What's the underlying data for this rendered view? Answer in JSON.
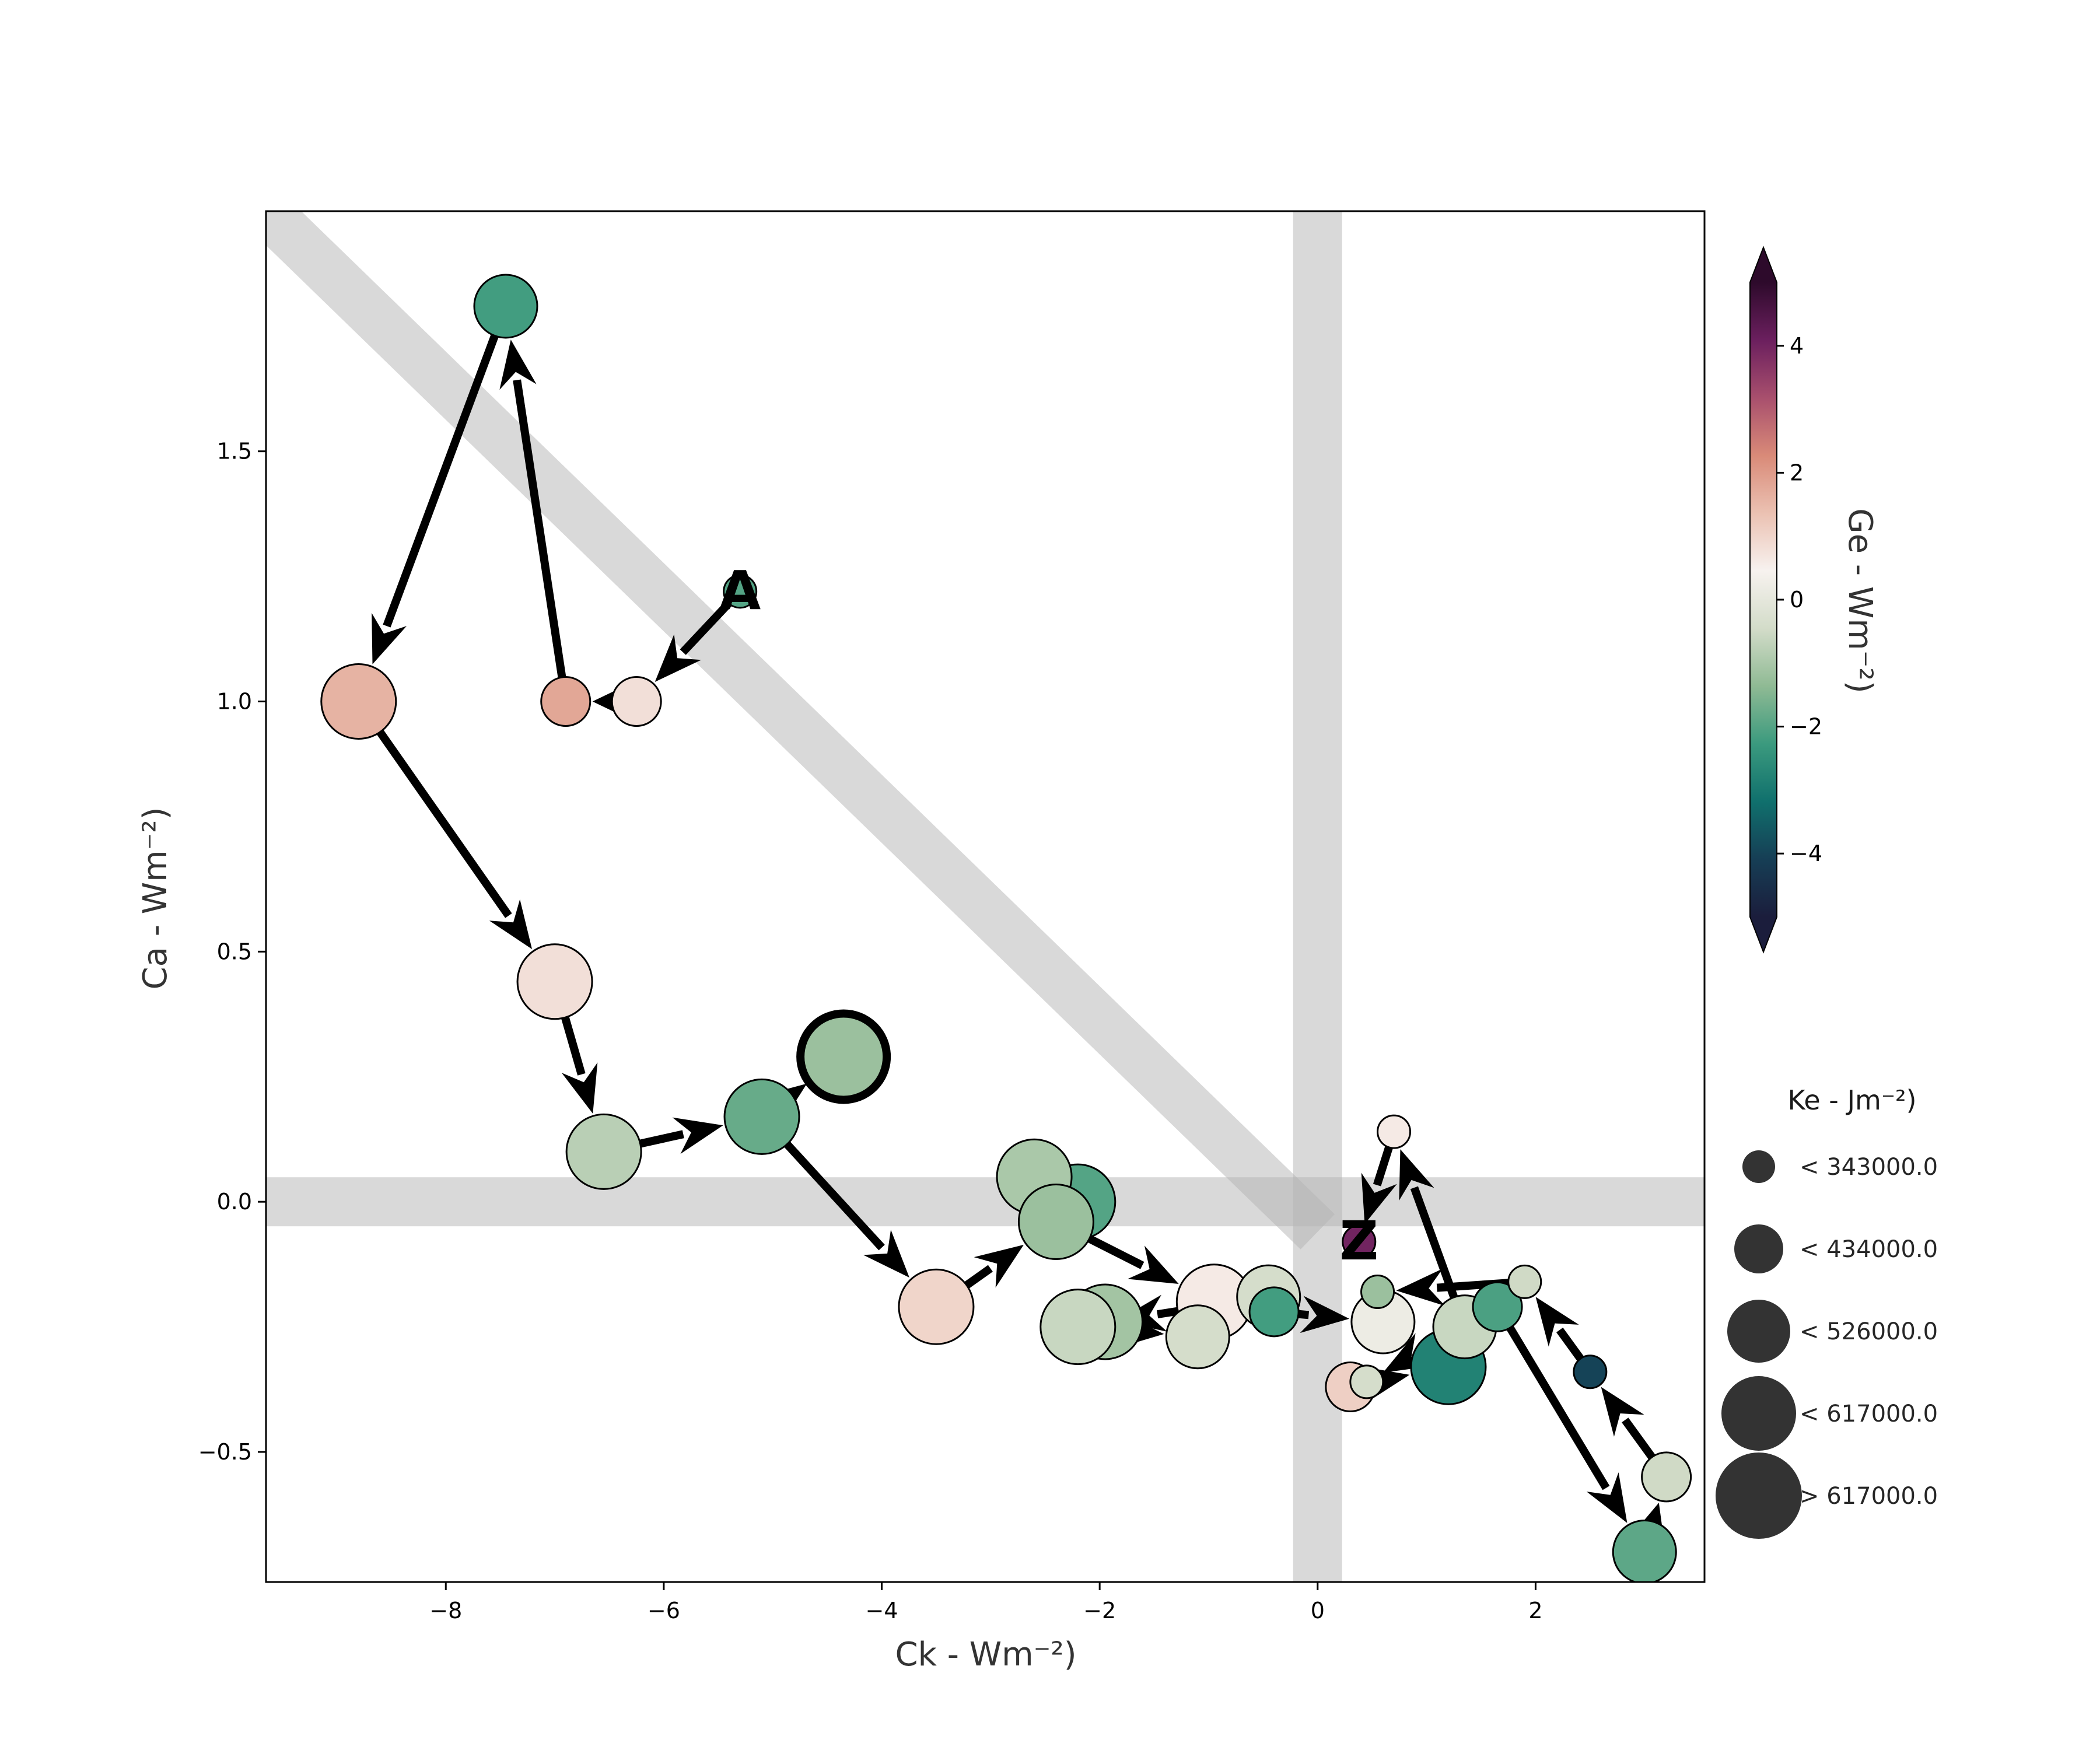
{
  "chart_data": {
    "type": "scatter",
    "xlabel": "Ck - Wm⁻²)",
    "ylabel": "Ca - Wm⁻²)",
    "xlim": [
      -9.65,
      3.55
    ],
    "ylim": [
      -0.76,
      1.98
    ],
    "xticks": [
      -8,
      -6,
      -4,
      -2,
      0,
      2
    ],
    "xtick_labels": [
      "−8",
      "−6",
      "−4",
      "−2",
      "0",
      "2"
    ],
    "yticks": [
      -0.5,
      0.0,
      0.5,
      1.0,
      1.5
    ],
    "ytick_labels": [
      "−0.5",
      "0.0",
      "0.5",
      "1.0",
      "1.5"
    ],
    "grid": false,
    "reference_bands": [
      {
        "kind": "vertical",
        "x": 0
      },
      {
        "kind": "horizontal",
        "y": 0
      },
      {
        "kind": "diagonal",
        "from": [
          -9.65,
          1.98
        ],
        "to": [
          0,
          -0.06
        ]
      }
    ],
    "colorbar": {
      "label": "Ge - Wm⁻²)",
      "range": [
        -5,
        5
      ],
      "ticks": [
        4,
        2,
        0,
        -2,
        -4
      ],
      "tick_labels": [
        "4",
        "2",
        "0",
        "−2",
        "−4"
      ],
      "extend": "both",
      "colors": [
        "#1b1d3c",
        "#163e55",
        "#10706d",
        "#3b9a7e",
        "#8fba94",
        "#d3dcc9",
        "#f7f2ef",
        "#ebc1b2",
        "#d98a78",
        "#a84f6d",
        "#6b1f5e",
        "#2d0a2b"
      ]
    },
    "size_legend": {
      "title": "Ke - Jm⁻²)",
      "entries": [
        "< 343000.0",
        "< 434000.0",
        "< 526000.0",
        "< 617000.0",
        "> 617000.0"
      ]
    },
    "markers": {
      "start": "A",
      "end": "Z"
    },
    "points": [
      {
        "x": -5.3,
        "y": 1.22,
        "ge": -2.0,
        "ke_class": 0
      },
      {
        "x": -6.25,
        "y": 1.0,
        "ge": 0.8,
        "ke_class": 1
      },
      {
        "x": -6.9,
        "y": 1.0,
        "ge": 1.8,
        "ke_class": 1
      },
      {
        "x": -7.45,
        "y": 1.79,
        "ge": -2.2,
        "ke_class": 2
      },
      {
        "x": -8.8,
        "y": 1.0,
        "ge": 1.6,
        "ke_class": 3
      },
      {
        "x": -7.0,
        "y": 0.44,
        "ge": 0.8,
        "ke_class": 3
      },
      {
        "x": -6.55,
        "y": 0.1,
        "ge": -0.8,
        "ke_class": 3
      },
      {
        "x": -5.1,
        "y": 0.17,
        "ge": -1.8,
        "ke_class": 3
      },
      {
        "x": -4.35,
        "y": 0.29,
        "ge": -1.2,
        "ke_class": 4,
        "highlight": true
      },
      {
        "x": -3.5,
        "y": -0.21,
        "ge": 1.0,
        "ke_class": 3
      },
      {
        "x": -2.2,
        "y": 0.0,
        "ge": -2.0,
        "ke_class": 3
      },
      {
        "x": -2.6,
        "y": 0.05,
        "ge": -1.0,
        "ke_class": 3
      },
      {
        "x": -2.4,
        "y": -0.04,
        "ge": -1.2,
        "ke_class": 3
      },
      {
        "x": -0.95,
        "y": -0.2,
        "ge": 0.6,
        "ke_class": 3
      },
      {
        "x": -0.45,
        "y": -0.19,
        "ge": -0.4,
        "ke_class": 2
      },
      {
        "x": -1.95,
        "y": -0.24,
        "ge": -1.1,
        "ke_class": 3
      },
      {
        "x": -2.2,
        "y": -0.25,
        "ge": -0.6,
        "ke_class": 3
      },
      {
        "x": -1.1,
        "y": -0.27,
        "ge": -0.4,
        "ke_class": 2
      },
      {
        "x": -0.4,
        "y": -0.22,
        "ge": -2.2,
        "ke_class": 1
      },
      {
        "x": 0.6,
        "y": -0.24,
        "ge": 0.2,
        "ke_class": 2
      },
      {
        "x": 1.35,
        "y": -0.25,
        "ge": -0.6,
        "ke_class": 2
      },
      {
        "x": 0.45,
        "y": -0.36,
        "ge": -0.4,
        "ke_class": 0
      },
      {
        "x": 0.3,
        "y": -0.37,
        "ge": 1.1,
        "ke_class": 1
      },
      {
        "x": 1.2,
        "y": -0.33,
        "ge": -2.8,
        "ke_class": 3
      },
      {
        "x": 1.65,
        "y": -0.21,
        "ge": -2.1,
        "ke_class": 1
      },
      {
        "x": 0.55,
        "y": -0.18,
        "ge": -1.2,
        "ke_class": 0
      },
      {
        "x": 1.9,
        "y": -0.16,
        "ge": -0.5,
        "ke_class": 0
      },
      {
        "x": 2.5,
        "y": -0.34,
        "ge": -4.0,
        "ke_class": 0
      },
      {
        "x": 3.2,
        "y": -0.55,
        "ge": -0.5,
        "ke_class": 1
      },
      {
        "x": 3.0,
        "y": -0.7,
        "ge": -1.9,
        "ke_class": 2
      },
      {
        "x": 0.7,
        "y": 0.14,
        "ge": 0.6,
        "ke_class": 0
      },
      {
        "x": 0.38,
        "y": -0.08,
        "ge": 4.0,
        "ke_class": 0
      }
    ],
    "arrows": [
      {
        "from": 0,
        "to": 1
      },
      {
        "from": 1,
        "to": 2
      },
      {
        "from": 2,
        "to": 3
      },
      {
        "from": 3,
        "to": 4
      },
      {
        "from": 4,
        "to": 5
      },
      {
        "from": 5,
        "to": 6
      },
      {
        "from": 6,
        "to": 7
      },
      {
        "from": 7,
        "to": 8
      },
      {
        "from": 7,
        "to": 9
      },
      {
        "from": 9,
        "to": 12
      },
      {
        "from": 12,
        "to": 13
      },
      {
        "from": 14,
        "to": 16
      },
      {
        "from": 16,
        "to": 17
      },
      {
        "from": 17,
        "to": 18
      },
      {
        "from": 18,
        "to": 19
      },
      {
        "from": 20,
        "to": 21
      },
      {
        "from": 22,
        "to": 23
      },
      {
        "from": 24,
        "to": 29
      },
      {
        "from": 29,
        "to": 28
      },
      {
        "from": 28,
        "to": 27
      },
      {
        "from": 27,
        "to": 26
      },
      {
        "from": 26,
        "to": 25
      },
      {
        "from": 20,
        "to": 30
      },
      {
        "from": 30,
        "to": 31
      }
    ]
  }
}
